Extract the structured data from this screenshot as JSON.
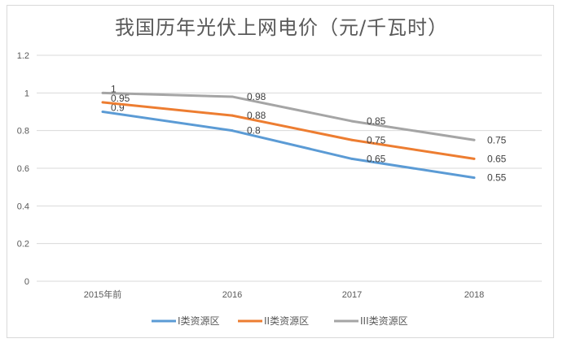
{
  "chart_data": {
    "type": "line",
    "title": "我国历年光伏上网电价（元/千瓦时）",
    "categories": [
      "2015年前",
      "2016",
      "2017",
      "2018"
    ],
    "ylim": [
      0,
      1.2
    ],
    "yticks": [
      "0",
      "0.2",
      "0.4",
      "0.6",
      "0.8",
      "1",
      "1.2"
    ],
    "grid": true,
    "legend_position": "bottom",
    "series": [
      {
        "name": "I类资源区",
        "color": "#5b9bd5",
        "values": [
          0.9,
          0.8,
          0.65,
          0.55
        ],
        "labels": [
          "0.9",
          "0.8",
          "0.65",
          "0.55"
        ]
      },
      {
        "name": "II类资源区",
        "color": "#ed7d31",
        "values": [
          0.95,
          0.88,
          0.75,
          0.65
        ],
        "labels": [
          "0.95",
          "0.88",
          "0.75",
          "0.65"
        ]
      },
      {
        "name": "III类资源区",
        "color": "#a5a5a5",
        "values": [
          1,
          0.98,
          0.85,
          0.75
        ],
        "labels": [
          "1",
          "0.98",
          "0.85",
          "0.75"
        ]
      }
    ]
  }
}
